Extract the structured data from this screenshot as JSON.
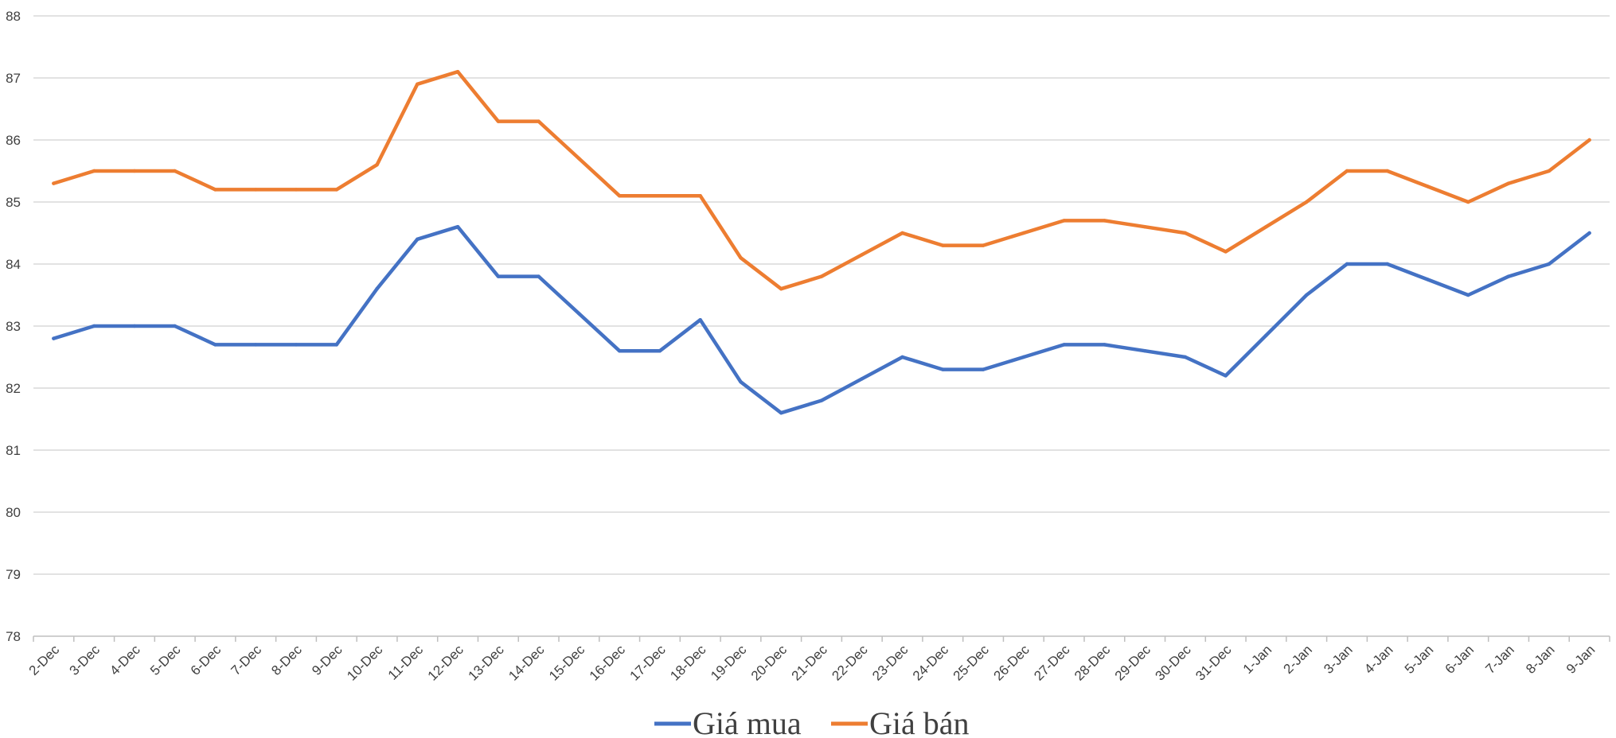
{
  "chart_data": {
    "type": "line",
    "title": "",
    "xlabel": "",
    "ylabel": "",
    "ylim": [
      78,
      88
    ],
    "yticks": [
      78,
      79,
      80,
      81,
      82,
      83,
      84,
      85,
      86,
      87,
      88
    ],
    "grid": true,
    "legend": "bottom-center",
    "categories": [
      "2-Dec",
      "3-Dec",
      "4-Dec",
      "5-Dec",
      "6-Dec",
      "7-Dec",
      "8-Dec",
      "9-Dec",
      "10-Dec",
      "11-Dec",
      "12-Dec",
      "13-Dec",
      "14-Dec",
      "15-Dec",
      "16-Dec",
      "17-Dec",
      "18-Dec",
      "19-Dec",
      "20-Dec",
      "21-Dec",
      "22-Dec",
      "23-Dec",
      "24-Dec",
      "25-Dec",
      "26-Dec",
      "27-Dec",
      "28-Dec",
      "29-Dec",
      "30-Dec",
      "31-Dec",
      "1-Jan",
      "2-Jan",
      "3-Jan",
      "4-Jan",
      "5-Jan",
      "6-Jan",
      "7-Jan",
      "8-Jan",
      "9-Jan"
    ],
    "series": [
      {
        "name": "Giá mua",
        "color": "#4472c4",
        "values": [
          82.8,
          83.0,
          83.0,
          83.0,
          82.7,
          82.7,
          82.7,
          82.7,
          83.6,
          84.4,
          84.6,
          83.8,
          83.8,
          83.2,
          82.6,
          82.6,
          83.1,
          82.1,
          81.6,
          81.8,
          82.15,
          82.5,
          82.3,
          82.3,
          82.5,
          82.7,
          82.7,
          82.6,
          82.5,
          82.2,
          82.85,
          83.5,
          84.0,
          84.0,
          83.75,
          83.5,
          83.8,
          84.0,
          84.5
        ]
      },
      {
        "name": "Giá bán",
        "color": "#ed7d31",
        "values": [
          85.3,
          85.5,
          85.5,
          85.5,
          85.2,
          85.2,
          85.2,
          85.2,
          85.6,
          86.9,
          87.1,
          86.3,
          86.3,
          85.7,
          85.1,
          85.1,
          85.1,
          84.1,
          83.6,
          83.8,
          84.15,
          84.5,
          84.3,
          84.3,
          84.5,
          84.7,
          84.7,
          84.6,
          84.5,
          84.2,
          84.6,
          85.0,
          85.5,
          85.5,
          85.25,
          85.0,
          85.3,
          85.5,
          86.0
        ]
      }
    ]
  }
}
